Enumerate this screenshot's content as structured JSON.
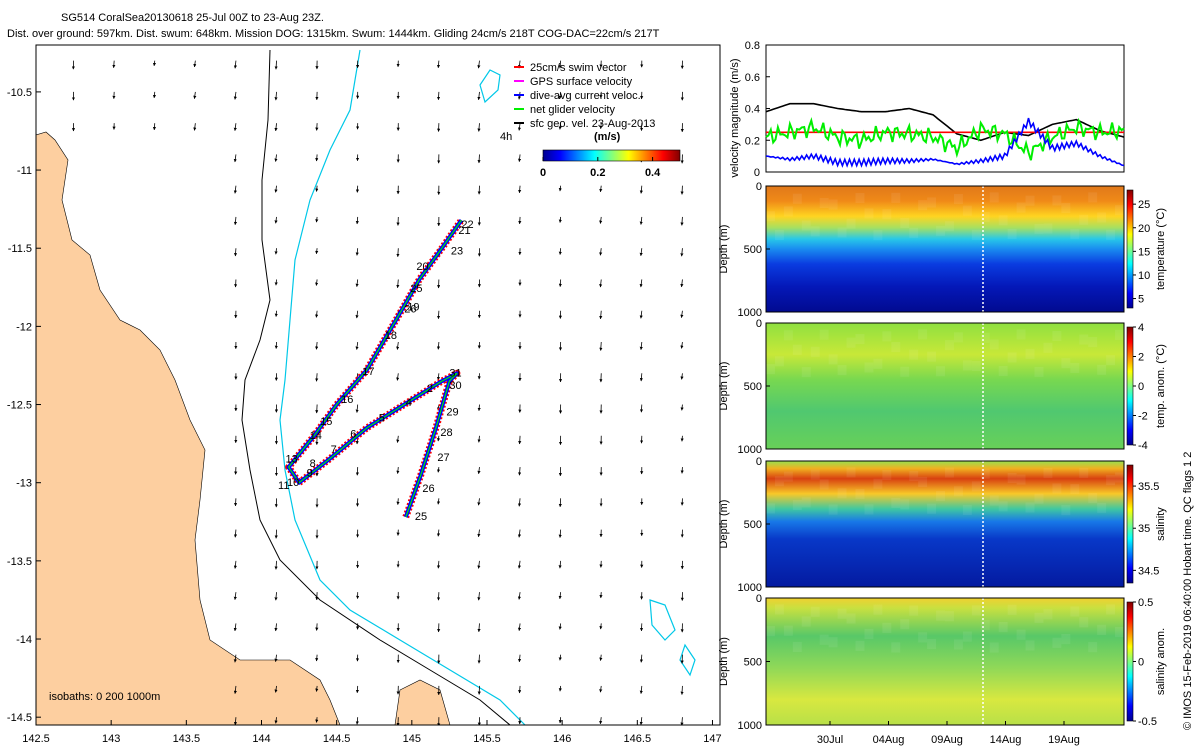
{
  "header": {
    "line1": "SG514 CoralSea20130618 25-Jul 00Z to 23-Aug 23Z.",
    "line2": "Dist. over ground: 597km. Dist. swum: 648km. Mission DOG: 1315km. Swum: 1444km. Gliding 24cm/s 218T COG-DAC=22cm/s 217T"
  },
  "footer_right": "© IMOS 15-Feb-2019 06:40:00 Hobart time. QC flags 1 2",
  "chart_data": [
    {
      "id": "map",
      "type": "scatter",
      "title": "SG514 glider track and current vectors",
      "xlim": [
        142.5,
        147.05
      ],
      "ylim": [
        -14.55,
        -10.2
      ],
      "xticks": [
        142.5,
        143,
        143.5,
        144,
        144.5,
        145,
        145.5,
        146,
        146.5,
        147
      ],
      "xtick_labels": [
        "142.5",
        "143",
        "143.5",
        "144",
        "144.5",
        "145",
        "145.5",
        "146",
        "146.5",
        "147"
      ],
      "yticks": [
        -10.5,
        -11,
        -11.5,
        -12,
        -12.5,
        -13,
        -13.5,
        -14,
        -14.5
      ],
      "ytick_labels": [
        "-10.5",
        "-11",
        "-11.5",
        "-12",
        "-12.5",
        "-13",
        "-13.5",
        "-14",
        "-14.5"
      ],
      "legend": [
        {
          "label": "25cm/s swim vector",
          "color": "#ff0000",
          "marker": "-"
        },
        {
          "label": "GPS surface velocity",
          "color": "#ff00ff",
          "marker": "-"
        },
        {
          "label": "dive-avg current veloc.",
          "color": "#0000ff",
          "marker": "-"
        },
        {
          "label": "net glider velocity",
          "color": "#00ee00",
          "marker": "-"
        },
        {
          "label": "sfc geo. vel. 23-Aug-2013",
          "color": "#000000",
          "marker": "-"
        }
      ],
      "legend_position": "top-right",
      "colorbar": {
        "label": "(m/s)",
        "extra_label": "4h",
        "ticks": [
          "0",
          "0.2",
          "0.4"
        ],
        "range": [
          0,
          0.5
        ]
      },
      "isobath_note": "isobaths: 0   200  1000m",
      "track": {
        "lon": [
          144.96,
          145.06,
          145.16,
          145.25,
          145.3,
          145.2,
          144.95,
          144.7,
          144.45,
          144.25,
          144.18,
          144.35,
          144.5,
          144.7,
          144.9,
          145.05,
          145.2,
          145.33
        ],
        "lat": [
          -13.22,
          -12.95,
          -12.65,
          -12.35,
          -12.3,
          -12.35,
          -12.5,
          -12.65,
          -12.85,
          -13.0,
          -12.9,
          -12.7,
          -12.5,
          -12.28,
          -11.95,
          -11.7,
          -11.5,
          -11.32
        ]
      },
      "day_labels": [
        {
          "text": "25",
          "lon": 145.02,
          "lat": -13.24
        },
        {
          "text": "26",
          "lon": 145.07,
          "lat": -13.06
        },
        {
          "text": "27",
          "lon": 145.17,
          "lat": -12.86
        },
        {
          "text": "28",
          "lon": 145.19,
          "lat": -12.7
        },
        {
          "text": "29",
          "lon": 145.23,
          "lat": -12.57
        },
        {
          "text": "30",
          "lon": 145.25,
          "lat": -12.4
        },
        {
          "text": "31",
          "lon": 145.25,
          "lat": -12.32
        },
        {
          "text": "2",
          "lon": 145.1,
          "lat": -12.42
        },
        {
          "text": "4",
          "lon": 144.96,
          "lat": -12.51
        },
        {
          "text": "5",
          "lon": 144.78,
          "lat": -12.61
        },
        {
          "text": "6",
          "lon": 144.59,
          "lat": -12.71
        },
        {
          "text": "7",
          "lon": 144.46,
          "lat": -12.81
        },
        {
          "text": "8",
          "lon": 144.32,
          "lat": -12.9
        },
        {
          "text": "9",
          "lon": 144.3,
          "lat": -12.96
        },
        {
          "text": "10",
          "lon": 144.17,
          "lat": -13.02
        },
        {
          "text": "11",
          "lon": 144.11,
          "lat": -13.04
        },
        {
          "text": "13",
          "lon": 144.16,
          "lat": -12.87
        },
        {
          "text": "14",
          "lon": 144.32,
          "lat": -12.72
        },
        {
          "text": "15",
          "lon": 144.39,
          "lat": -12.63
        },
        {
          "text": "16",
          "lon": 144.53,
          "lat": -12.49
        },
        {
          "text": "17",
          "lon": 144.67,
          "lat": -12.31
        },
        {
          "text": "18",
          "lon": 144.82,
          "lat": -12.08
        },
        {
          "text": "19",
          "lon": 144.97,
          "lat": -11.9
        },
        {
          "text": "20",
          "lon": 145.03,
          "lat": -11.64
        },
        {
          "text": "21",
          "lon": 145.31,
          "lat": -11.41
        },
        {
          "text": "22",
          "lon": 145.33,
          "lat": -11.37
        },
        {
          "text": "23",
          "lon": 145.26,
          "lat": -11.54
        },
        {
          "text": "25",
          "lon": 144.99,
          "lat": -11.78
        },
        {
          "text": "26",
          "lon": 144.95,
          "lat": -11.91
        }
      ]
    },
    {
      "id": "velocity",
      "type": "line",
      "ylabel": "velocity magnitude (m/s)",
      "ylim": [
        0,
        0.8
      ],
      "yticks": [
        0,
        0.2,
        0.4,
        0.6,
        0.8
      ],
      "ytick_labels": [
        "0",
        "0.2",
        "0.4",
        "0.6",
        "0.8"
      ],
      "x": [
        0,
        2,
        4,
        6,
        8,
        10,
        12,
        14,
        16,
        18,
        20,
        22,
        24,
        26,
        28,
        30
      ],
      "series": [
        {
          "name": "surface geostrophic",
          "color": "#000000",
          "values": [
            0.38,
            0.43,
            0.43,
            0.4,
            0.38,
            0.38,
            0.4,
            0.36,
            0.24,
            0.2,
            0.25,
            0.23,
            0.3,
            0.33,
            0.26,
            0.22
          ]
        },
        {
          "name": "swim 25cm/s",
          "color": "#ff0000",
          "values": [
            0.25,
            0.25,
            0.25,
            0.25,
            0.25,
            0.25,
            0.25,
            0.25,
            0.25,
            0.25,
            0.25,
            0.25,
            0.25,
            0.25,
            0.25,
            0.25
          ]
        },
        {
          "name": "net glider velocity",
          "color": "#00ee00",
          "values": [
            0.22,
            0.25,
            0.28,
            0.22,
            0.2,
            0.25,
            0.24,
            0.22,
            0.15,
            0.27,
            0.24,
            0.12,
            0.22,
            0.28,
            0.25,
            0.26
          ]
        },
        {
          "name": "dive-avg current",
          "color": "#0000ff",
          "values": [
            0.1,
            0.08,
            0.1,
            0.06,
            0.06,
            0.07,
            0.07,
            0.08,
            0.05,
            0.07,
            0.1,
            0.32,
            0.15,
            0.18,
            0.1,
            0.04
          ]
        }
      ]
    },
    {
      "id": "temperature",
      "type": "heatmap",
      "ylabel": "Depth (m)",
      "yticks": [
        "0",
        "500",
        "1000"
      ],
      "colorbar_label": "temperature (°C)",
      "colorbar_ticks": [
        "5",
        "10",
        "15",
        "20",
        "25"
      ],
      "colorbar_range": [
        3,
        28
      ]
    },
    {
      "id": "temp_anom",
      "type": "heatmap",
      "ylabel": "Depth (m)",
      "yticks": [
        "0",
        "500",
        "1000"
      ],
      "colorbar_label": "temp. anom. (°C)",
      "colorbar_ticks": [
        "-4",
        "-2",
        "0",
        "2",
        "4"
      ],
      "colorbar_range": [
        -4,
        4
      ]
    },
    {
      "id": "salinity",
      "type": "heatmap",
      "ylabel": "Depth (m)",
      "yticks": [
        "0",
        "500",
        "1000"
      ],
      "colorbar_label": "salinity",
      "colorbar_ticks": [
        "34.5",
        "35",
        "35.5"
      ],
      "colorbar_range": [
        34.35,
        35.75
      ]
    },
    {
      "id": "sal_anom",
      "type": "heatmap",
      "ylabel": "Depth (m)",
      "yticks": [
        "0",
        "500",
        "1000"
      ],
      "colorbar_label": "salinity anom.",
      "colorbar_ticks": [
        "-0.5",
        "0",
        "0.5"
      ],
      "colorbar_range": [
        -0.5,
        0.5
      ],
      "xtick_labels": [
        "30Jul",
        "04Aug",
        "09Aug",
        "14Aug",
        "19Aug"
      ]
    }
  ]
}
